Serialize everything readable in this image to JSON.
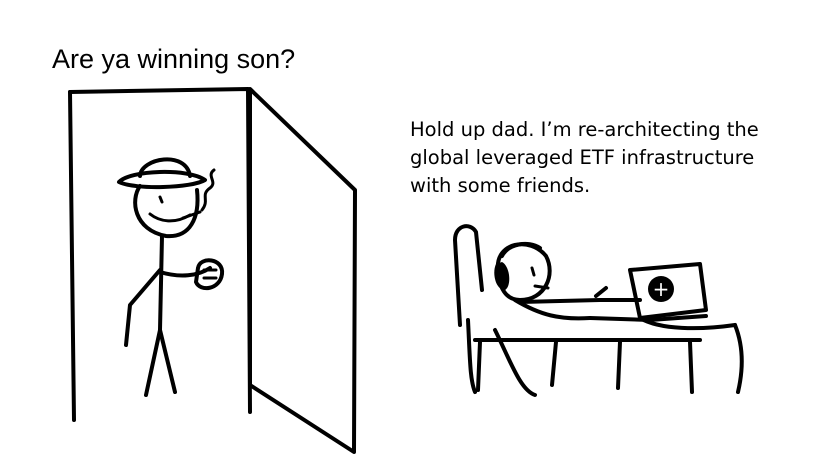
{
  "meme": {
    "left_caption": "Are ya winning son?",
    "right_caption": "Hold up dad. I’m re-architecting the\nglobal leveraged ETF infrastructure\nwith some friends."
  },
  "icons": {
    "laptop_logo": "plus-circle-icon"
  }
}
